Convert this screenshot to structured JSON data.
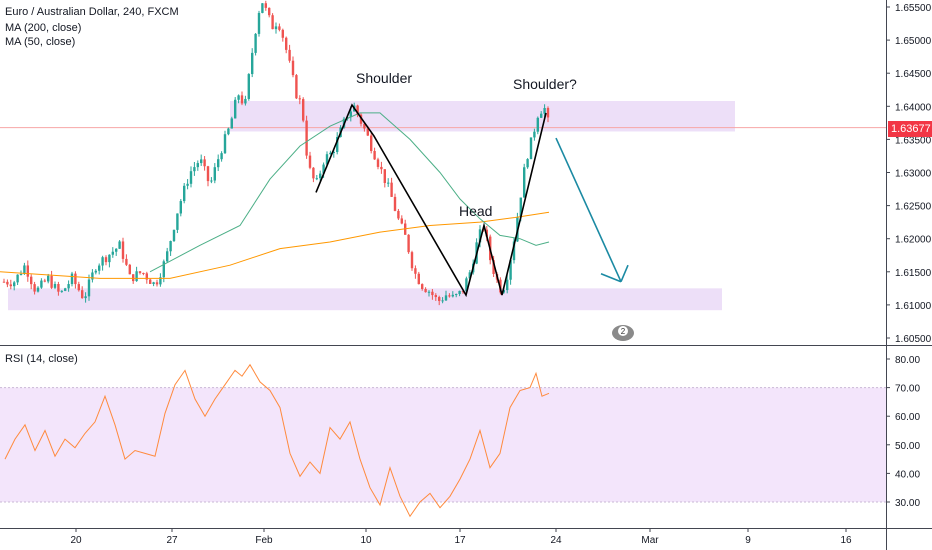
{
  "legend": {
    "symbol": "Euro / Australian Dollar, 240, FXCM",
    "ma200": "MA (200, close)",
    "ma50": "MA (50, close)",
    "rsi": "RSI (14, close)"
  },
  "annotations": {
    "left_shoulder": "Shoulder",
    "head": "Head",
    "right_shoulder": "Shoulder?"
  },
  "current_price_label": "1.63677",
  "badge_text": "2",
  "colors": {
    "up": "#26a69a",
    "down": "#ef5350",
    "ma200": "#ff9800",
    "ma50": "#4caf87",
    "rsi_line": "#ff8a3d",
    "rsi_band": "#f3e5fb",
    "zone": "#ead9f7",
    "pattern_line": "#000000",
    "arrow": "#1b8aa3",
    "price_line": "#f7a6a6",
    "price_tag": "#f23645"
  },
  "chart_data": [
    {
      "type": "candlestick",
      "title": "Euro / Australian Dollar, 240, FXCM",
      "price_axis_ticks": [
        "1.65500",
        "1.65000",
        "1.64500",
        "1.64000",
        "1.63500",
        "1.63000",
        "1.62500",
        "1.62000",
        "1.61500",
        "1.61000",
        "1.60500"
      ],
      "ylim": [
        1.603,
        1.657
      ],
      "x_ticks": [
        "20",
        "27",
        "Feb",
        "10",
        "17",
        "24",
        "Mar",
        "9",
        "16"
      ],
      "current_price": 1.63677,
      "resistance_zone": [
        1.6362,
        1.6408
      ],
      "support_zone": [
        1.6092,
        1.6125
      ],
      "ohlc_path": [
        [
          14,
          1.6135
        ],
        [
          25,
          1.616
        ],
        [
          36,
          1.612
        ],
        [
          48,
          1.614
        ],
        [
          60,
          1.6115
        ],
        [
          72,
          1.614
        ],
        [
          84,
          1.611
        ],
        [
          96,
          1.616
        ],
        [
          108,
          1.6175
        ],
        [
          120,
          1.619
        ],
        [
          130,
          1.614
        ],
        [
          142,
          1.615
        ],
        [
          155,
          1.613
        ],
        [
          166,
          1.617
        ],
        [
          178,
          1.6245
        ],
        [
          190,
          1.63
        ],
        [
          200,
          1.632
        ],
        [
          210,
          1.628
        ],
        [
          220,
          1.633
        ],
        [
          230,
          1.637
        ],
        [
          238,
          1.642
        ],
        [
          245,
          1.64
        ],
        [
          252,
          1.648
        ],
        [
          258,
          1.654
        ],
        [
          262,
          1.656
        ],
        [
          267,
          1.654
        ],
        [
          272,
          1.652
        ],
        [
          278,
          1.653
        ],
        [
          284,
          1.65
        ],
        [
          290,
          1.646
        ],
        [
          296,
          1.642
        ],
        [
          302,
          1.64
        ],
        [
          308,
          1.631
        ],
        [
          316,
          1.628
        ],
        [
          324,
          1.632
        ],
        [
          332,
          1.633
        ],
        [
          340,
          1.636
        ],
        [
          348,
          1.639
        ],
        [
          354,
          1.64
        ],
        [
          360,
          1.638
        ],
        [
          366,
          1.636
        ],
        [
          374,
          1.633
        ],
        [
          382,
          1.63
        ],
        [
          390,
          1.627
        ],
        [
          398,
          1.623
        ],
        [
          406,
          1.62
        ],
        [
          414,
          1.615
        ],
        [
          422,
          1.613
        ],
        [
          430,
          1.612
        ],
        [
          438,
          1.6105
        ],
        [
          446,
          1.6115
        ],
        [
          454,
          1.611
        ],
        [
          462,
          1.612
        ],
        [
          470,
          1.615
        ],
        [
          478,
          1.62
        ],
        [
          484,
          1.622
        ],
        [
          490,
          1.617
        ],
        [
          496,
          1.614
        ],
        [
          502,
          1.612
        ],
        [
          508,
          1.615
        ],
        [
          514,
          1.62
        ],
        [
          520,
          1.626
        ],
        [
          526,
          1.632
        ],
        [
          532,
          1.635
        ],
        [
          538,
          1.639
        ],
        [
          544,
          1.64
        ],
        [
          549,
          1.637
        ]
      ],
      "series": [
        {
          "name": "MA (200, close)",
          "points": [
            [
              0,
              1.615
            ],
            [
              100,
              1.614
            ],
            [
              170,
              1.614
            ],
            [
              230,
              1.616
            ],
            [
              280,
              1.6185
            ],
            [
              330,
              1.6195
            ],
            [
              380,
              1.621
            ],
            [
              430,
              1.622
            ],
            [
              480,
              1.6225
            ],
            [
              515,
              1.6232
            ],
            [
              549,
              1.624
            ]
          ]
        },
        {
          "name": "MA (50, close)",
          "points": [
            [
              150,
              1.615
            ],
            [
              200,
              1.619
            ],
            [
              240,
              1.622
            ],
            [
              270,
              1.629
            ],
            [
              300,
              1.634
            ],
            [
              330,
              1.637
            ],
            [
              360,
              1.639
            ],
            [
              380,
              1.639
            ],
            [
              410,
              1.635
            ],
            [
              440,
              1.63
            ],
            [
              460,
              1.626
            ],
            [
              480,
              1.623
            ],
            [
              500,
              1.6205
            ],
            [
              520,
              1.62
            ],
            [
              536,
              1.619
            ],
            [
              549,
              1.6195
            ]
          ]
        }
      ]
    },
    {
      "type": "line",
      "title": "RSI (14, close)",
      "y_ticks": [
        "80.00",
        "70.00",
        "60.00",
        "50.00",
        "40.00",
        "30.00"
      ],
      "ylim": [
        24,
        83
      ],
      "band": [
        30,
        70
      ],
      "x": [
        5,
        15,
        25,
        35,
        45,
        55,
        65,
        75,
        85,
        95,
        105,
        115,
        125,
        135,
        145,
        155,
        165,
        175,
        185,
        195,
        205,
        215,
        225,
        235,
        242,
        250,
        260,
        270,
        280,
        290,
        300,
        310,
        320,
        330,
        340,
        350,
        360,
        370,
        380,
        390,
        400,
        410,
        420,
        430,
        440,
        450,
        460,
        470,
        480,
        490,
        500,
        510,
        520,
        530,
        536,
        542,
        549
      ],
      "values": [
        45,
        52,
        57,
        48,
        55,
        46,
        52,
        49,
        54,
        58,
        67,
        57,
        45,
        48,
        47,
        46,
        61,
        71,
        76,
        66,
        60,
        66,
        71,
        76,
        74,
        78,
        72,
        69,
        63,
        47,
        39,
        44,
        40,
        56,
        52,
        58,
        45,
        35,
        29,
        42,
        32,
        25,
        30,
        33,
        28,
        32,
        38,
        45,
        55,
        42,
        47,
        63,
        69,
        70,
        75,
        67,
        68
      ]
    }
  ],
  "overlay_points": {
    "hs_path": [
      [
        316,
        1.627
      ],
      [
        352,
        1.6402
      ],
      [
        374,
        1.6355
      ],
      [
        466,
        1.6115
      ],
      [
        484,
        1.622
      ],
      [
        502,
        1.6115
      ],
      [
        546,
        1.639
      ]
    ],
    "arrow_path": [
      [
        556,
        1.6352
      ],
      [
        621,
        1.6135
      ],
      [
        628,
        1.616
      ]
    ]
  }
}
